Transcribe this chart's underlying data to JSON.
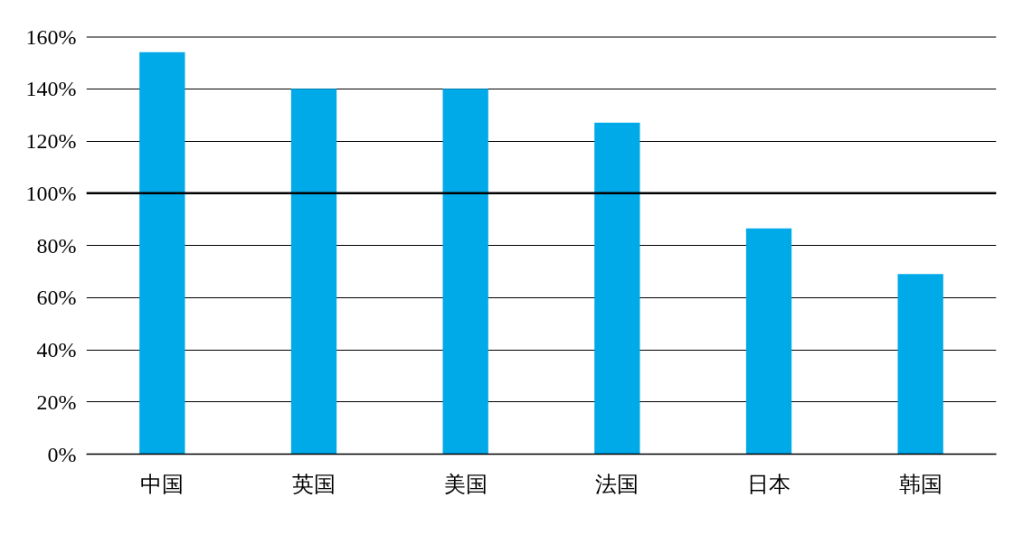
{
  "chart_data": {
    "type": "bar",
    "categories": [
      "中国",
      "英国",
      "美国",
      "法国",
      "日本",
      "韩国"
    ],
    "values": [
      154,
      140,
      140,
      127,
      86.5,
      69
    ],
    "color": "#00a9e8",
    "ylim": [
      0,
      160
    ],
    "yticks": [
      {
        "value": 0,
        "label": "0%"
      },
      {
        "value": 20,
        "label": "20%"
      },
      {
        "value": 40,
        "label": "40%"
      },
      {
        "value": 60,
        "label": "60%"
      },
      {
        "value": 80,
        "label": "80%"
      },
      {
        "value": 100,
        "label": "100%"
      },
      {
        "value": 120,
        "label": "120%"
      },
      {
        "value": 140,
        "label": "140%"
      },
      {
        "value": 160,
        "label": "160%"
      }
    ],
    "grid": "y",
    "ref_lines": [
      {
        "axis": "y",
        "value": 100,
        "color": "#000000"
      }
    ]
  }
}
